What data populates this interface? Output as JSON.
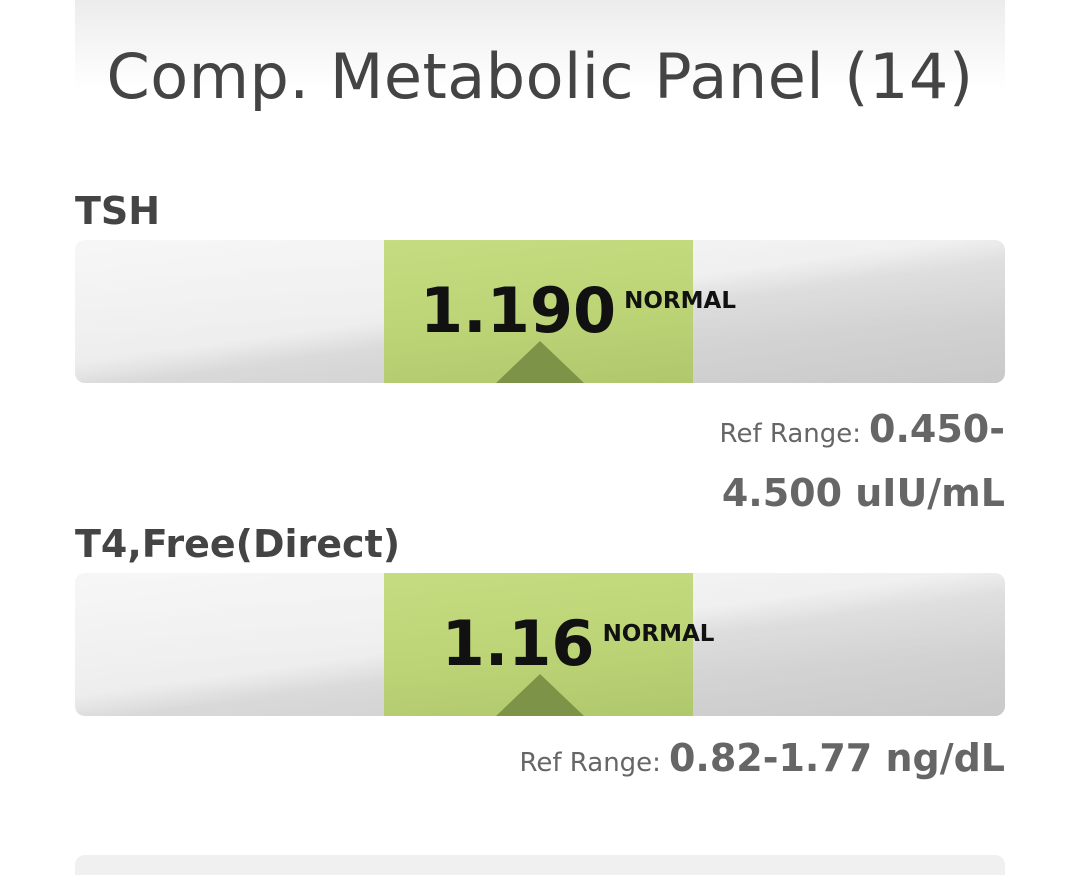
{
  "header": {
    "title": "Comp. Metabolic Panel (14)"
  },
  "tests": [
    {
      "name": "TSH",
      "value": "1.190",
      "status": "NORMAL",
      "ref_label": "Ref Range:",
      "ref_range": "0.450-4.500 uIU/mL"
    },
    {
      "name": "T4,Free(Direct)",
      "value": "1.16",
      "status": "NORMAL",
      "ref_label": "Ref Range:",
      "ref_range": "0.82-1.77 ng/dL"
    }
  ]
}
